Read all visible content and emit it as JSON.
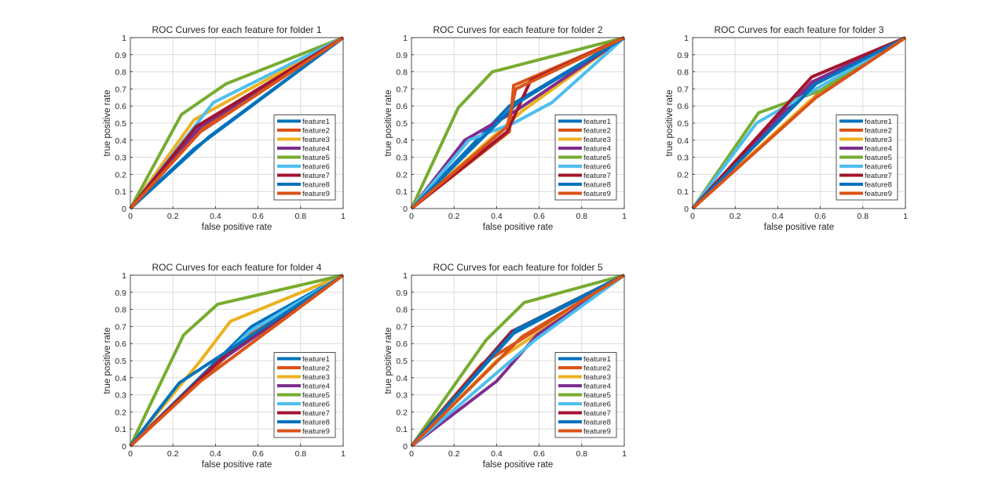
{
  "colors": {
    "feature1": "#0072BD",
    "feature2": "#D95319",
    "feature3": "#EDB120",
    "feature4": "#7E2F8E",
    "feature5": "#77AC30",
    "feature6": "#4DBEEE",
    "feature7": "#A2142F",
    "feature8": "#0072BD",
    "feature9": "#D95319",
    "grid": "#dcdcdc",
    "axis": "#262626"
  },
  "chart_data": [
    {
      "type": "line",
      "title": "ROC Curves for each feature for folder 1",
      "xlabel": "false positive rate",
      "ylabel": "true positive rate",
      "xlim": [
        0,
        1
      ],
      "ylim": [
        0,
        1
      ],
      "xticks": [
        "0",
        "0.2",
        "0.4",
        "0.6",
        "0.8",
        "1"
      ],
      "yticks": [
        "0",
        "0.1",
        "0.2",
        "0.3",
        "0.4",
        "0.5",
        "0.6",
        "0.7",
        "0.8",
        "0.9",
        "1"
      ],
      "grid": true,
      "legend_position": "bottom-right",
      "series": [
        {
          "name": "feature1",
          "x": [
            0,
            0.3,
            1
          ],
          "y": [
            0,
            0.35,
            1
          ]
        },
        {
          "name": "feature2",
          "x": [
            0,
            0.28,
            1
          ],
          "y": [
            0,
            0.42,
            1
          ]
        },
        {
          "name": "feature3",
          "x": [
            0,
            0.3,
            1
          ],
          "y": [
            0,
            0.52,
            1
          ]
        },
        {
          "name": "feature4",
          "x": [
            0,
            0.33,
            1
          ],
          "y": [
            0,
            0.48,
            1
          ]
        },
        {
          "name": "feature5",
          "x": [
            0,
            0.24,
            0.45,
            1
          ],
          "y": [
            0,
            0.55,
            0.73,
            1
          ]
        },
        {
          "name": "feature6",
          "x": [
            0,
            0.39,
            1
          ],
          "y": [
            0,
            0.62,
            1
          ]
        },
        {
          "name": "feature7",
          "x": [
            0,
            0.31,
            1
          ],
          "y": [
            0,
            0.48,
            1
          ]
        },
        {
          "name": "feature8",
          "x": [
            0,
            0.37,
            1
          ],
          "y": [
            0,
            0.42,
            1
          ]
        },
        {
          "name": "feature9",
          "x": [
            0,
            0.33,
            1
          ],
          "y": [
            0,
            0.45,
            1
          ]
        }
      ]
    },
    {
      "type": "line",
      "title": "ROC Curves for each feature for folder 2",
      "xlabel": "false positive rate",
      "ylabel": "true positive rate",
      "xlim": [
        0,
        1
      ],
      "ylim": [
        0,
        1
      ],
      "xticks": [
        "0",
        "0.2",
        "0.4",
        "0.6",
        "0.8",
        "1"
      ],
      "yticks": [
        "0",
        "0.1",
        "0.2",
        "0.3",
        "0.4",
        "0.5",
        "0.6",
        "0.7",
        "0.8",
        "0.9",
        "1"
      ],
      "grid": true,
      "legend_position": "bottom-right",
      "series": [
        {
          "name": "feature1",
          "x": [
            0,
            0.46,
            1
          ],
          "y": [
            0,
            0.6,
            1
          ]
        },
        {
          "name": "feature2",
          "x": [
            0,
            0.46,
            0.48,
            1
          ],
          "y": [
            0,
            0.45,
            0.72,
            1
          ]
        },
        {
          "name": "feature3",
          "x": [
            0,
            0.52,
            1
          ],
          "y": [
            0,
            0.57,
            1
          ]
        },
        {
          "name": "feature4",
          "x": [
            0,
            0.25,
            0.5,
            1
          ],
          "y": [
            0,
            0.4,
            0.58,
            1
          ]
        },
        {
          "name": "feature5",
          "x": [
            0,
            0.22,
            0.38,
            1
          ],
          "y": [
            0,
            0.59,
            0.8,
            1
          ]
        },
        {
          "name": "feature6",
          "x": [
            0,
            0.27,
            0.48,
            0.66,
            1
          ],
          "y": [
            0,
            0.4,
            0.5,
            0.62,
            1
          ]
        },
        {
          "name": "feature7",
          "x": [
            0,
            0.45,
            0.56,
            1
          ],
          "y": [
            0,
            0.45,
            0.75,
            1
          ]
        },
        {
          "name": "feature8",
          "x": [
            0,
            0.5,
            1
          ],
          "y": [
            0,
            0.62,
            1
          ]
        },
        {
          "name": "feature9",
          "x": [
            0,
            0.45,
            0.49,
            1
          ],
          "y": [
            0,
            0.48,
            0.7,
            1
          ]
        }
      ]
    },
    {
      "type": "line",
      "title": "ROC Curves for each feature for folder 3",
      "xlabel": "false positive rate",
      "ylabel": "true positive rate",
      "xlim": [
        0,
        1
      ],
      "ylim": [
        0,
        1
      ],
      "xticks": [
        "0",
        "0.2",
        "0.4",
        "0.6",
        "0.8",
        "1"
      ],
      "yticks": [
        "0",
        "0.1",
        "0.2",
        "0.3",
        "0.4",
        "0.5",
        "0.6",
        "0.7",
        "0.8",
        "0.9",
        "1"
      ],
      "grid": true,
      "legend_position": "bottom-right",
      "series": [
        {
          "name": "feature1",
          "x": [
            0,
            0.58,
            1
          ],
          "y": [
            0,
            0.74,
            1
          ]
        },
        {
          "name": "feature2",
          "x": [
            0,
            0.58,
            1
          ],
          "y": [
            0,
            0.66,
            1
          ]
        },
        {
          "name": "feature3",
          "x": [
            0,
            0.55,
            1
          ],
          "y": [
            0,
            0.63,
            1
          ]
        },
        {
          "name": "feature4",
          "x": [
            0,
            0.56,
            1
          ],
          "y": [
            0,
            0.74,
            1
          ]
        },
        {
          "name": "feature5",
          "x": [
            0,
            0.31,
            0.6,
            1
          ],
          "y": [
            0,
            0.56,
            0.69,
            1
          ]
        },
        {
          "name": "feature6",
          "x": [
            0,
            0.3,
            1
          ],
          "y": [
            0,
            0.5,
            1
          ]
        },
        {
          "name": "feature7",
          "x": [
            0,
            0.56,
            1
          ],
          "y": [
            0,
            0.77,
            1
          ]
        },
        {
          "name": "feature8",
          "x": [
            0,
            0.58,
            1
          ],
          "y": [
            0,
            0.73,
            1
          ]
        },
        {
          "name": "feature9",
          "x": [
            0,
            0.58,
            1
          ],
          "y": [
            0,
            0.65,
            1
          ]
        }
      ]
    },
    {
      "type": "line",
      "title": "ROC Curves for each feature for folder 4",
      "xlabel": "false positive rate",
      "ylabel": "true positive rate",
      "xlim": [
        0,
        1
      ],
      "ylim": [
        0,
        1
      ],
      "xticks": [
        "0",
        "0.2",
        "0.4",
        "0.6",
        "0.8",
        "1"
      ],
      "yticks": [
        "0",
        "0.1",
        "0.2",
        "0.3",
        "0.4",
        "0.5",
        "0.6",
        "0.7",
        "0.8",
        "0.9",
        "1"
      ],
      "grid": true,
      "legend_position": "bottom-right",
      "series": [
        {
          "name": "feature1",
          "x": [
            0,
            0.57,
            1
          ],
          "y": [
            0,
            0.7,
            1
          ]
        },
        {
          "name": "feature2",
          "x": [
            0,
            0.55,
            1
          ],
          "y": [
            0,
            0.64,
            1
          ]
        },
        {
          "name": "feature3",
          "x": [
            0,
            0.33,
            0.47,
            1
          ],
          "y": [
            0,
            0.5,
            0.73,
            1
          ]
        },
        {
          "name": "feature4",
          "x": [
            0,
            0.4,
            1
          ],
          "y": [
            0,
            0.48,
            1
          ]
        },
        {
          "name": "feature5",
          "x": [
            0,
            0.25,
            0.41,
            1
          ],
          "y": [
            0,
            0.65,
            0.83,
            1
          ]
        },
        {
          "name": "feature6",
          "x": [
            0,
            0.56,
            1
          ],
          "y": [
            0,
            0.67,
            1
          ]
        },
        {
          "name": "feature7",
          "x": [
            0,
            0.46,
            1
          ],
          "y": [
            0,
            0.55,
            1
          ]
        },
        {
          "name": "feature8",
          "x": [
            0,
            0.23,
            1
          ],
          "y": [
            0,
            0.37,
            1
          ]
        },
        {
          "name": "feature9",
          "x": [
            0,
            0.33,
            1
          ],
          "y": [
            0,
            0.38,
            1
          ]
        }
      ]
    },
    {
      "type": "line",
      "title": "ROC Curves for each feature for folder 5",
      "xlabel": "false positive rate",
      "ylabel": "true positive rate",
      "xlim": [
        0,
        1
      ],
      "ylim": [
        0,
        1
      ],
      "xticks": [
        "0",
        "0.2",
        "0.4",
        "0.6",
        "0.8",
        "1"
      ],
      "yticks": [
        "0",
        "0.1",
        "0.2",
        "0.3",
        "0.4",
        "0.5",
        "0.6",
        "0.7",
        "0.8",
        "0.9",
        "1"
      ],
      "grid": true,
      "legend_position": "bottom-right",
      "series": [
        {
          "name": "feature1",
          "x": [
            0,
            0.48,
            1
          ],
          "y": [
            0,
            0.66,
            1
          ]
        },
        {
          "name": "feature2",
          "x": [
            0,
            0.33,
            1
          ],
          "y": [
            0,
            0.48,
            1
          ]
        },
        {
          "name": "feature3",
          "x": [
            0,
            0.4,
            1
          ],
          "y": [
            0,
            0.5,
            1
          ]
        },
        {
          "name": "feature4",
          "x": [
            0,
            0.4,
            0.59,
            1
          ],
          "y": [
            0,
            0.38,
            0.65,
            1
          ]
        },
        {
          "name": "feature5",
          "x": [
            0,
            0.35,
            0.53,
            1
          ],
          "y": [
            0,
            0.62,
            0.84,
            1
          ]
        },
        {
          "name": "feature6",
          "x": [
            0,
            0.58,
            1
          ],
          "y": [
            0,
            0.62,
            1
          ]
        },
        {
          "name": "feature7",
          "x": [
            0,
            0.47,
            1
          ],
          "y": [
            0,
            0.67,
            1
          ]
        },
        {
          "name": "feature8",
          "x": [
            0,
            0.49,
            1
          ],
          "y": [
            0,
            0.68,
            1
          ]
        },
        {
          "name": "feature9",
          "x": [
            0,
            0.52,
            1
          ],
          "y": [
            0,
            0.64,
            1
          ]
        }
      ]
    }
  ]
}
